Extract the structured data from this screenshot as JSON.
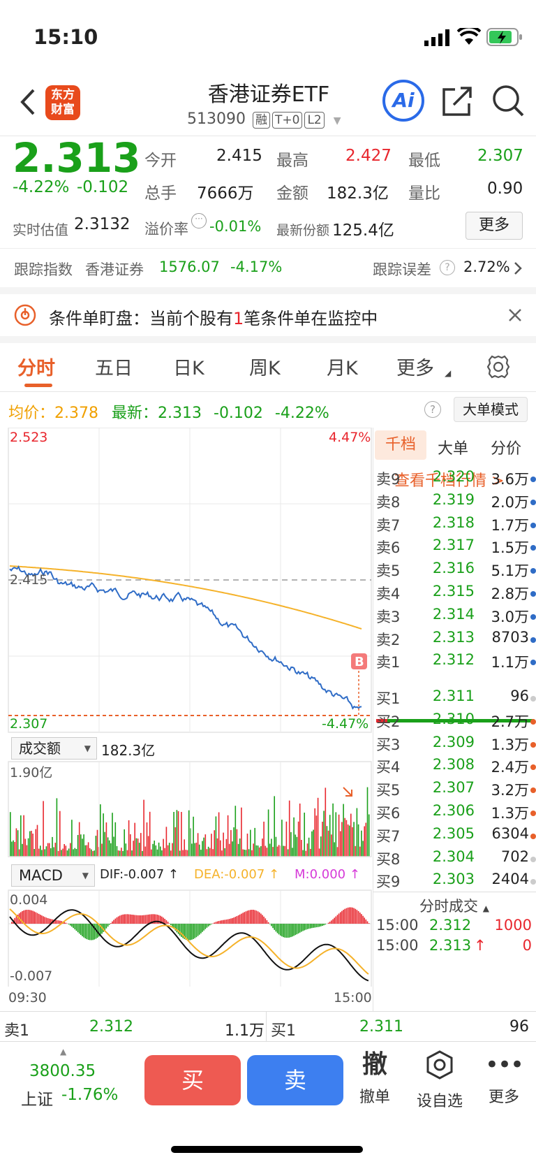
{
  "status": {
    "time": "15:10"
  },
  "header": {
    "title": "香港证券ETF",
    "code": "513090",
    "badges": [
      "融",
      "T+0",
      "L2"
    ],
    "logo_line1": "东方",
    "logo_line2": "财富",
    "ai": "Ai"
  },
  "quote": {
    "price": "2.313",
    "pct": "-4.22%",
    "chg": "-0.102",
    "open_label": "今开",
    "open": "2.415",
    "high_label": "最高",
    "high": "2.427",
    "low_label": "最低",
    "low": "2.307",
    "vol_label": "总手",
    "vol": "7666万",
    "amt_label": "金额",
    "amt": "182.3亿",
    "ratio_label": "量比",
    "ratio": "0.90",
    "est_label": "实时估值",
    "est": "2.3132",
    "prem_label": "溢价率",
    "prem": "-0.01%",
    "share_label": "最新份额",
    "share": "125.4亿",
    "more": "更多"
  },
  "track": {
    "label": "跟踪指数",
    "index": "香港证券",
    "value": "1576.07",
    "pct": "-4.17%",
    "err_label": "跟踪误差",
    "err": "2.72%"
  },
  "condition": {
    "prefix": "条件单盯盘：当前个股有",
    "count": "1",
    "suffix": "笔条件单在监控中"
  },
  "tabs": [
    "分时",
    "五日",
    "日K",
    "周K",
    "月K",
    "更多"
  ],
  "info": {
    "avg_label": "均价：",
    "avg": "2.378",
    "new_label": "最新：",
    "new": "2.313",
    "chg": "-0.102",
    "pct": "-4.22%",
    "mode": "大单模式"
  },
  "chart": {
    "max": "2.523",
    "maxpct": "4.47%",
    "min": "2.307",
    "minpct": "-4.47%",
    "open_ref": "2.415",
    "marker": "B",
    "vol_sel": "成交额",
    "vol_total": "182.3亿",
    "vol_max": "1.90亿",
    "macd_sel": "MACD",
    "dif": "DIF:-0.007 ↑",
    "dea": "DEA:-0.007 ↑",
    "m": "M:0.000 ↑",
    "macd_max": "0.004",
    "macd_min": "-0.007",
    "t_start": "09:30",
    "t_end": "15:00"
  },
  "orderbook": {
    "tabs": [
      "千档",
      "大单",
      "分价"
    ],
    "link": "查看千档行情 >",
    "asks": [
      {
        "label": "卖9",
        "price": "2.320",
        "vol": "3.6万"
      },
      {
        "label": "卖8",
        "price": "2.319",
        "vol": "2.0万"
      },
      {
        "label": "卖7",
        "price": "2.318",
        "vol": "1.7万"
      },
      {
        "label": "卖6",
        "price": "2.317",
        "vol": "1.5万"
      },
      {
        "label": "卖5",
        "price": "2.316",
        "vol": "5.1万"
      },
      {
        "label": "卖4",
        "price": "2.315",
        "vol": "2.8万"
      },
      {
        "label": "卖3",
        "price": "2.314",
        "vol": "3.0万"
      },
      {
        "label": "卖2",
        "price": "2.313",
        "vol": "8703"
      },
      {
        "label": "卖1",
        "price": "2.312",
        "vol": "1.1万"
      }
    ],
    "bids": [
      {
        "label": "买1",
        "price": "2.311",
        "vol": "96"
      },
      {
        "label": "买2",
        "price": "2.310",
        "vol": "2.7万"
      },
      {
        "label": "买3",
        "price": "2.309",
        "vol": "1.3万"
      },
      {
        "label": "买4",
        "price": "2.308",
        "vol": "2.4万"
      },
      {
        "label": "买5",
        "price": "2.307",
        "vol": "3.2万"
      },
      {
        "label": "买6",
        "price": "2.306",
        "vol": "1.3万"
      },
      {
        "label": "买7",
        "price": "2.305",
        "vol": "6304"
      },
      {
        "label": "买8",
        "price": "2.304",
        "vol": "702"
      },
      {
        "label": "买9",
        "price": "2.303",
        "vol": "2404"
      }
    ],
    "ticks_title": "分时成交",
    "ticks": [
      {
        "time": "15:00",
        "price": "2.312",
        "vol": "1000"
      },
      {
        "time": "15:00",
        "price": "2.313",
        "vol": "0"
      }
    ]
  },
  "bottomq": {
    "ask_label": "卖1",
    "ask_price": "2.312",
    "ask_vol": "1.1万",
    "bid_label": "买1",
    "bid_price": "2.311",
    "bid_vol": "96"
  },
  "toolbar": {
    "index_value": "3800.35",
    "index_name": "上证",
    "index_pct": "-1.76%",
    "buy": "买",
    "sell": "卖",
    "cancel_icon": "撤",
    "cancel": "撤单",
    "watch": "设自选",
    "more": "更多"
  }
}
